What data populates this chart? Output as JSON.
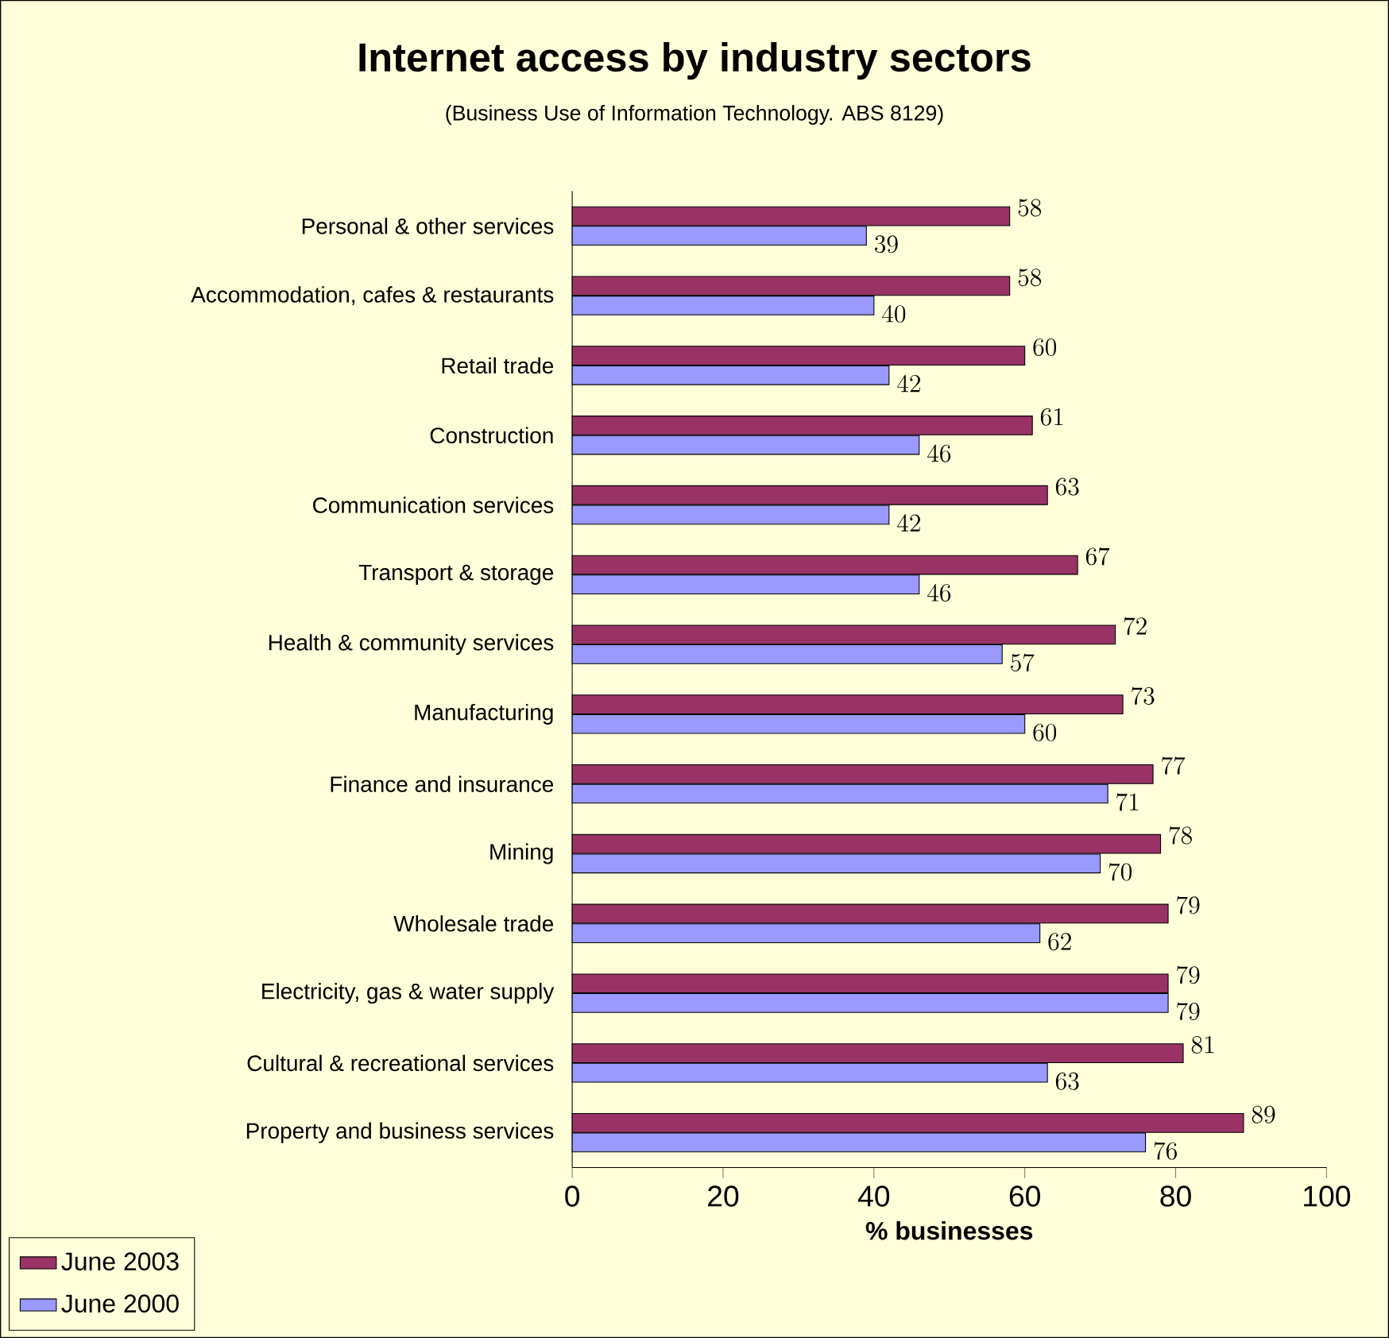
{
  "chart_data": {
    "type": "bar",
    "orientation": "horizontal",
    "title": "Internet access by industry sectors",
    "subtitle": "(Business Use of Information Technology. ABS 8129)",
    "xlabel": "% businesses",
    "categories": [
      "Personal & other services",
      "Accommodation, cafes & restaurants",
      "Retail trade",
      "Construction",
      "Communication services",
      "Transport & storage",
      "Health & community services",
      "Manufacturing",
      "Finance and insurance",
      "Mining",
      "Wholesale trade",
      "Electricity, gas & water supply",
      "Cultural & recreational services",
      "Property and business services"
    ],
    "series": [
      {
        "name": "June 2003",
        "color": "#993366",
        "values": [
          58,
          58,
          60,
          61,
          63,
          67,
          72,
          73,
          77,
          78,
          79,
          79,
          81,
          89
        ]
      },
      {
        "name": "June 2000",
        "color": "#9999ff",
        "values": [
          39,
          40,
          42,
          46,
          42,
          46,
          57,
          60,
          71,
          70,
          62,
          79,
          63,
          76
        ]
      }
    ],
    "xlim": [
      0,
      100
    ],
    "xticks": [
      0,
      20,
      40,
      60,
      80,
      100
    ],
    "data_labels": true,
    "legend": "bottom left",
    "grid": false
  }
}
